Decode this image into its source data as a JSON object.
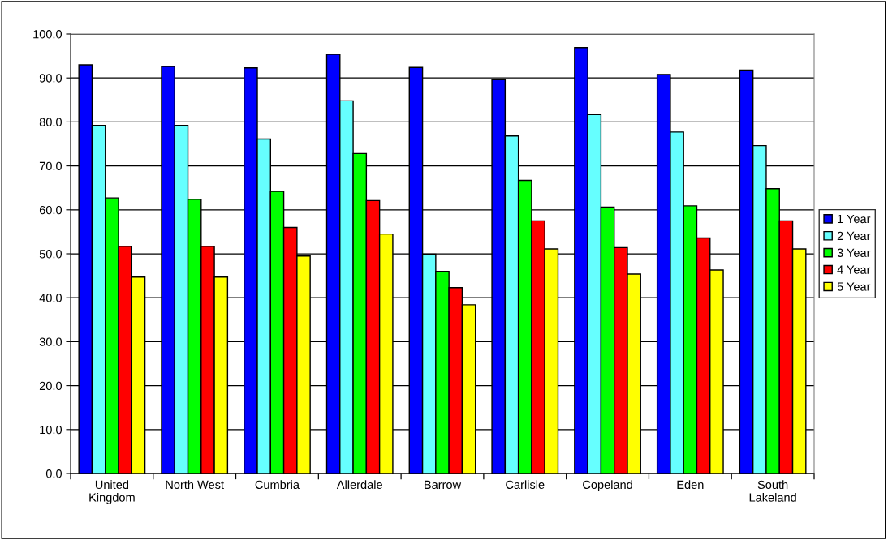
{
  "chart_data": {
    "type": "bar",
    "categories": [
      "United\nKingdom",
      "North West",
      "Cumbria",
      "Allerdale",
      "Barrow",
      "Carlisle",
      "Copeland",
      "Eden",
      "South\nLakeland"
    ],
    "series": [
      {
        "name": "1 Year",
        "color": "#0000ff",
        "values": [
          93.0,
          92.6,
          92.3,
          95.4,
          92.4,
          89.6,
          96.9,
          90.8,
          91.8
        ]
      },
      {
        "name": "2 Year",
        "color": "#66ffff",
        "values": [
          79.2,
          79.2,
          76.1,
          84.8,
          49.9,
          76.8,
          81.7,
          77.7,
          74.6
        ]
      },
      {
        "name": "3 Year",
        "color": "#00ff00",
        "values": [
          62.7,
          62.4,
          64.2,
          72.8,
          46.0,
          66.7,
          60.6,
          60.9,
          64.8
        ]
      },
      {
        "name": "4 Year",
        "color": "#ff0000",
        "values": [
          51.7,
          51.7,
          56.0,
          62.1,
          42.3,
          57.5,
          51.4,
          53.6,
          57.5
        ]
      },
      {
        "name": "5 Year",
        "color": "#ffff00",
        "values": [
          44.7,
          44.7,
          49.5,
          54.5,
          38.4,
          51.1,
          45.4,
          46.3,
          51.1
        ]
      }
    ],
    "ylim": [
      0,
      100
    ],
    "yticks": [
      {
        "value": 0,
        "label": "0.0"
      },
      {
        "value": 10,
        "label": "10.0"
      },
      {
        "value": 20,
        "label": "20.0"
      },
      {
        "value": 30,
        "label": "30.0"
      },
      {
        "value": 40,
        "label": "40.0"
      },
      {
        "value": 50,
        "label": "50.0"
      },
      {
        "value": 60,
        "label": "60.0"
      },
      {
        "value": 70,
        "label": "70.0"
      },
      {
        "value": 80,
        "label": "80.0"
      },
      {
        "value": 90,
        "label": "90.0"
      },
      {
        "value": 100,
        "label": "100.0"
      }
    ],
    "grid": "y",
    "legend": "right"
  }
}
